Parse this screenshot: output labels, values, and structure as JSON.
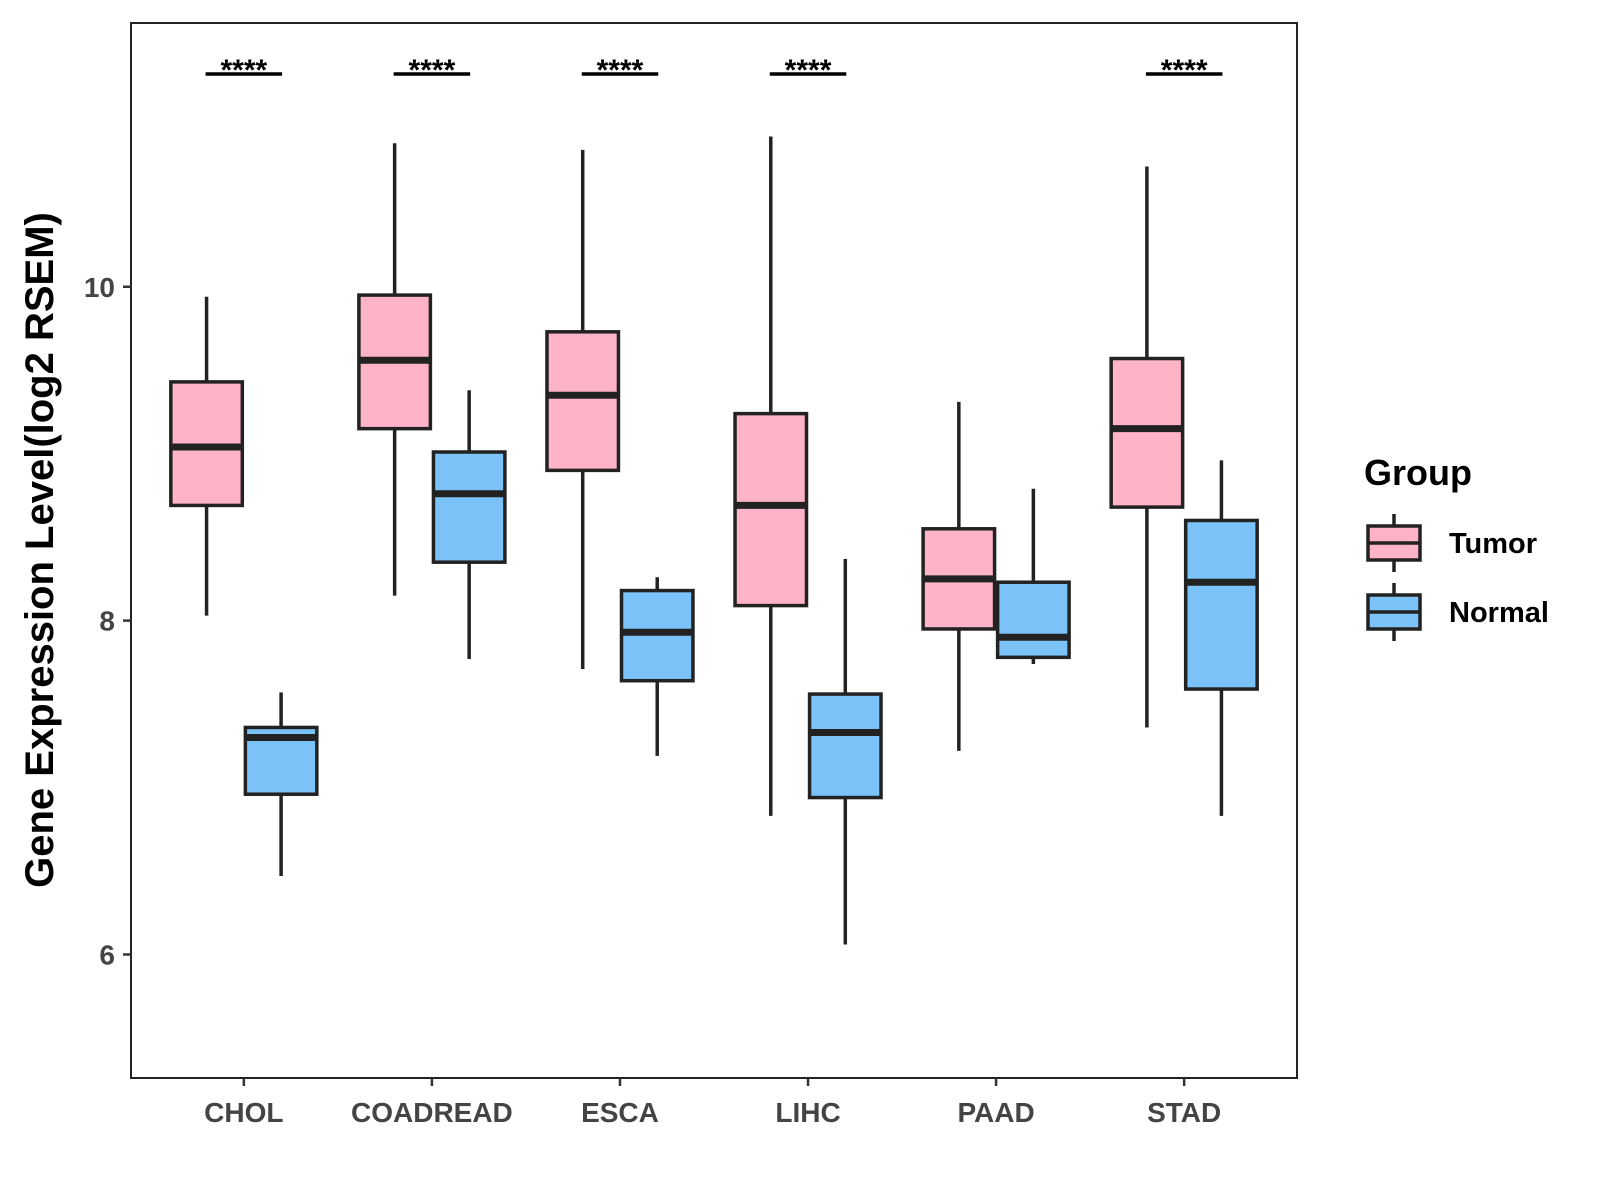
{
  "chart_data": {
    "type": "boxplot",
    "title": "",
    "xlabel": "",
    "ylabel": "Gene Expression Level(log2 RSEM)",
    "ylim": [
      5.26,
      11.58
    ],
    "yticks": [
      6,
      8,
      10
    ],
    "ytick_labels": [
      "6",
      "8",
      "10"
    ],
    "grid": false,
    "legend_position": "right",
    "legend_title": "Group",
    "categories": [
      "CHOL",
      "COADREAD",
      "ESCA",
      "LIHC",
      "PAAD",
      "STAD"
    ],
    "series": [
      {
        "name": "Tumor",
        "color": "#FFB3C6",
        "boxes": [
          {
            "min": 8.03,
            "q1": 8.69,
            "median": 9.04,
            "q3": 9.43,
            "max": 9.94
          },
          {
            "min": 8.15,
            "q1": 9.15,
            "median": 9.56,
            "q3": 9.95,
            "max": 10.86
          },
          {
            "min": 7.71,
            "q1": 8.9,
            "median": 9.35,
            "q3": 9.73,
            "max": 10.82
          },
          {
            "min": 6.83,
            "q1": 8.09,
            "median": 8.69,
            "q3": 9.24,
            "max": 10.9
          },
          {
            "min": 7.22,
            "q1": 7.95,
            "median": 8.25,
            "q3": 8.55,
            "max": 9.31
          },
          {
            "min": 7.36,
            "q1": 8.68,
            "median": 9.15,
            "q3": 9.57,
            "max": 10.72
          }
        ]
      },
      {
        "name": "Normal",
        "color": "#7BC2F8",
        "boxes": [
          {
            "min": 6.47,
            "q1": 6.96,
            "median": 7.3,
            "q3": 7.36,
            "max": 7.57
          },
          {
            "min": 7.77,
            "q1": 8.35,
            "median": 8.76,
            "q3": 9.01,
            "max": 9.38
          },
          {
            "min": 7.19,
            "q1": 7.64,
            "median": 7.93,
            "q3": 8.18,
            "max": 8.26
          },
          {
            "min": 6.06,
            "q1": 6.94,
            "median": 7.33,
            "q3": 7.56,
            "max": 8.37
          },
          {
            "min": 7.74,
            "q1": 7.78,
            "median": 7.9,
            "q3": 8.23,
            "max": 8.79
          },
          {
            "min": 6.83,
            "q1": 7.59,
            "median": 8.23,
            "q3": 8.6,
            "max": 8.96
          }
        ]
      }
    ],
    "significance": [
      {
        "category": "CHOL",
        "label": "****"
      },
      {
        "category": "COADREAD",
        "label": "****"
      },
      {
        "category": "ESCA",
        "label": "****"
      },
      {
        "category": "LIHC",
        "label": "****"
      },
      {
        "category": "STAD",
        "label": "****"
      }
    ]
  }
}
